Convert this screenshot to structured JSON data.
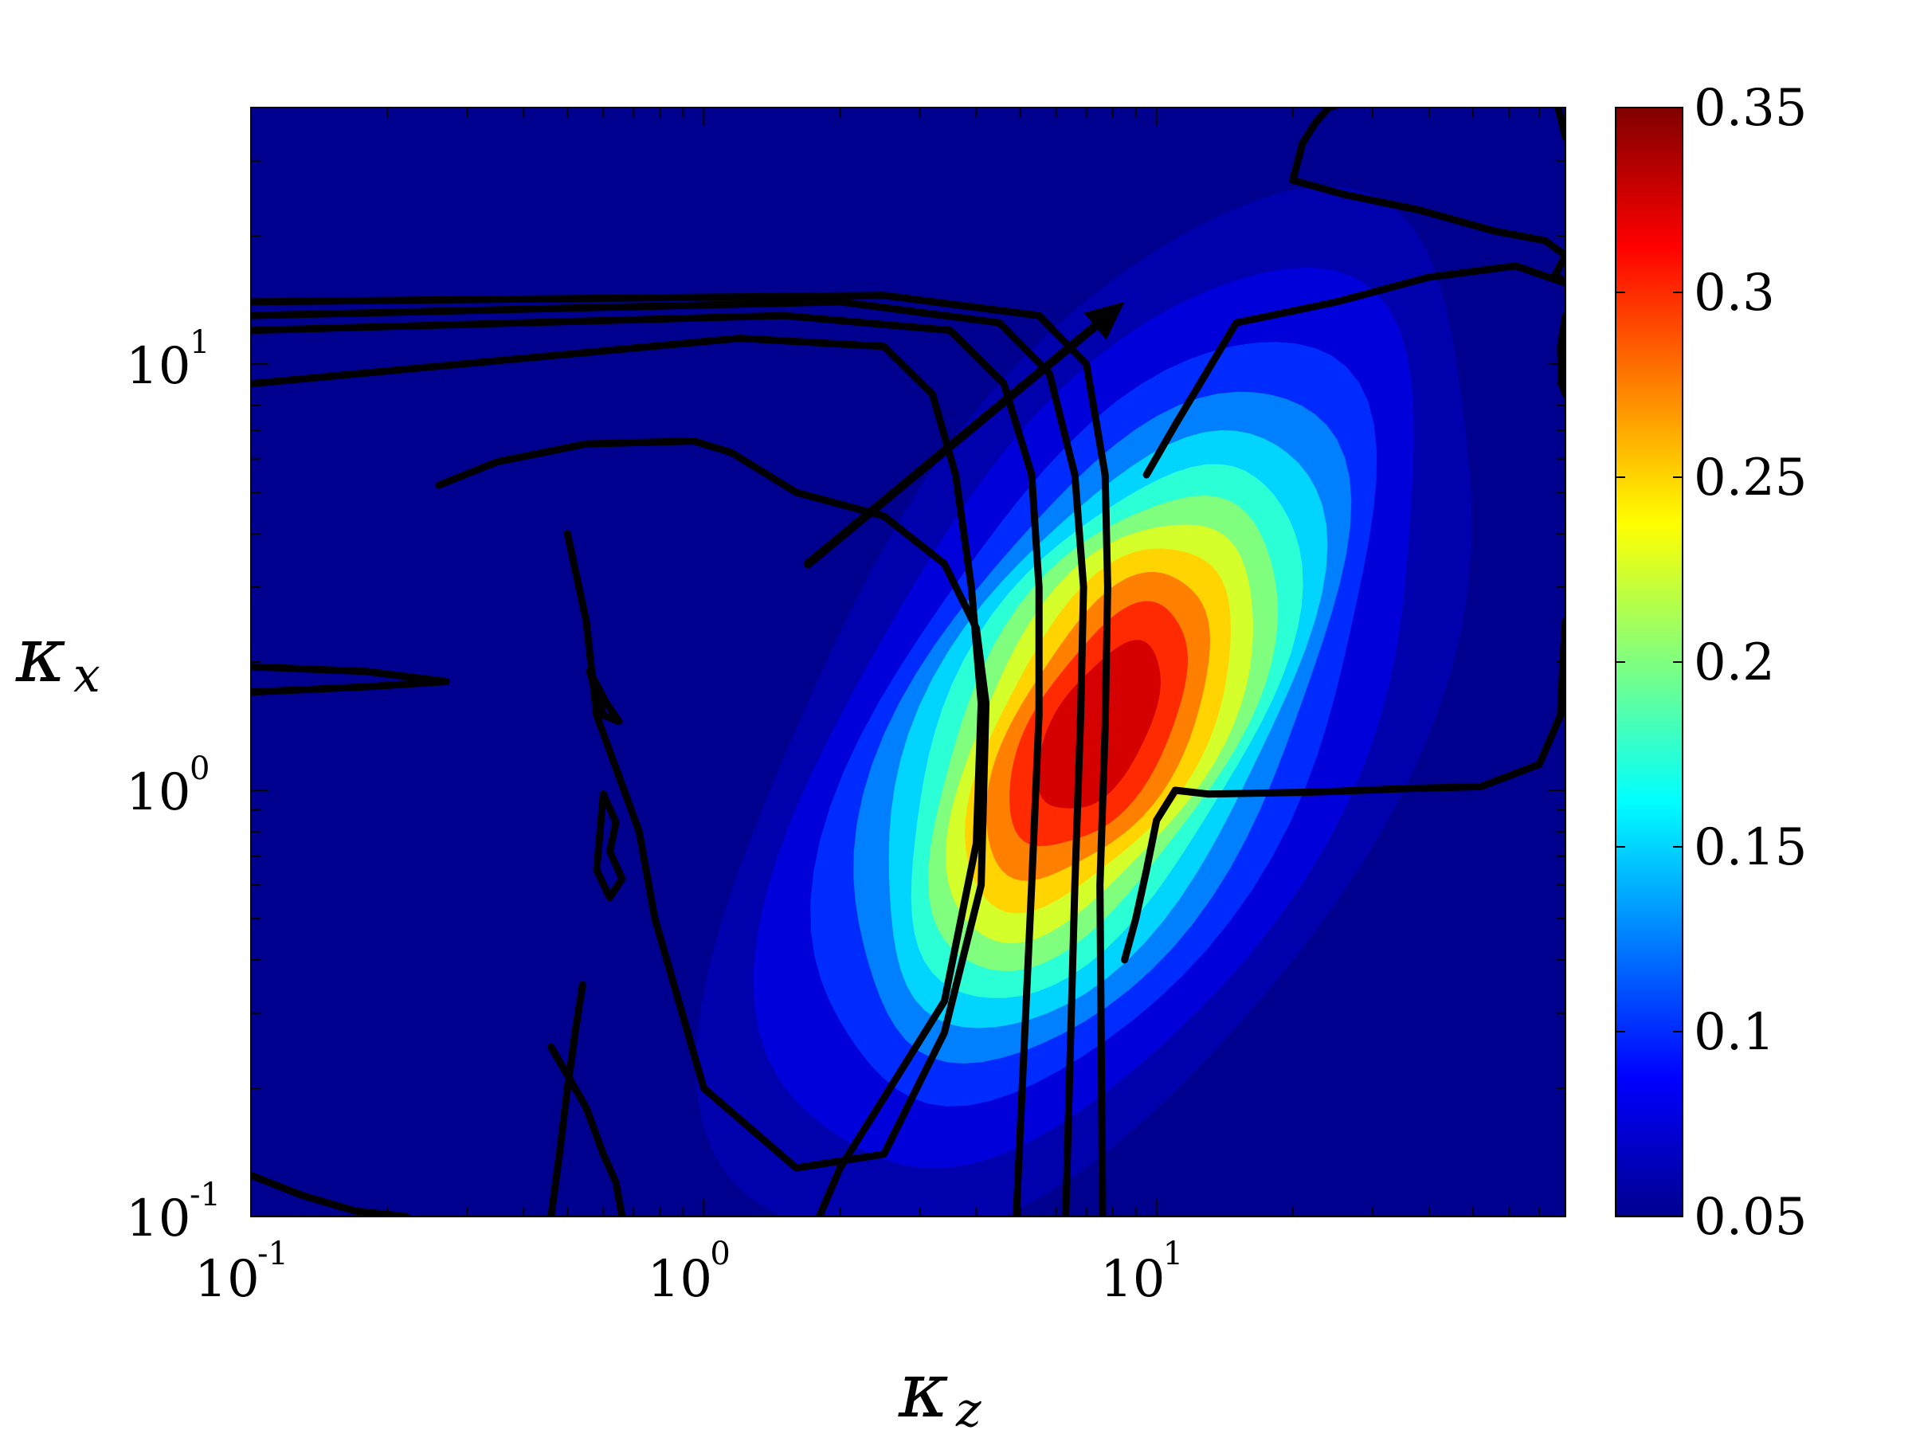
{
  "chart_data": {
    "type": "heatmap",
    "subtype": "filled contour with black contour lines",
    "xlabel": "κ",
    "xlabel_sub": "z",
    "ylabel": "κ",
    "ylabel_sub": "x",
    "x_scale": "log",
    "y_scale": "log",
    "xlim": [
      0.1,
      80
    ],
    "ylim": [
      0.1,
      40
    ],
    "x_ticks": [
      {
        "base": "10",
        "exp": "-1",
        "value": 0.1
      },
      {
        "base": "10",
        "exp": "0",
        "value": 1
      },
      {
        "base": "10",
        "exp": "1",
        "value": 10
      }
    ],
    "y_ticks": [
      {
        "base": "10",
        "exp": "-1",
        "value": 0.1
      },
      {
        "base": "10",
        "exp": "0",
        "value": 1
      },
      {
        "base": "10",
        "exp": "1",
        "value": 10
      }
    ],
    "colorbar": {
      "colormap": "jet",
      "range": [
        0.05,
        0.35
      ],
      "ticks": [
        "0.05",
        "0.1",
        "0.15",
        "0.2",
        "0.25",
        "0.3",
        "0.35"
      ],
      "tick_values": [
        0.05,
        0.1,
        0.15,
        0.2,
        0.25,
        0.3,
        0.35
      ]
    },
    "field": {
      "background_level": 0.05,
      "peak": {
        "kz": 7.5,
        "kx": 1.4,
        "value": 0.35
      },
      "contour_levels": [
        0.06,
        0.075,
        0.1,
        0.125,
        0.15,
        0.175,
        0.2,
        0.225,
        0.25,
        0.275,
        0.3,
        0.325
      ]
    },
    "contour_lines": [
      {
        "kz": [
          0.1,
          1.2,
          2.5,
          3.2,
          3.6,
          3.9,
          4.1,
          4.0,
          3.4,
          2.0,
          1.8
        ],
        "kx": [
          9.0,
          11.5,
          11.0,
          8.5,
          5.5,
          3.0,
          1.6,
          0.75,
          0.32,
          0.13,
          0.1
        ]
      },
      {
        "kz": [
          0.1,
          1.5,
          3.5,
          4.6,
          5.3,
          5.5,
          5.5,
          5.3,
          4.9
        ],
        "kx": [
          12.0,
          13.0,
          12.0,
          9.0,
          5.5,
          3.0,
          1.5,
          0.6,
          0.1
        ]
      },
      {
        "kz": [
          0.1,
          2.0,
          4.5,
          5.8,
          6.6,
          6.9,
          6.8,
          6.6,
          6.3
        ],
        "kx": [
          13.0,
          14.0,
          12.5,
          9.5,
          5.5,
          3.0,
          1.5,
          0.6,
          0.1
        ]
      },
      {
        "kz": [
          0.1,
          2.5,
          5.5,
          7.0,
          7.7,
          7.8,
          7.7,
          7.5,
          7.6
        ],
        "kx": [
          14.0,
          14.5,
          13.0,
          10.0,
          5.5,
          3.0,
          1.4,
          0.6,
          0.1
        ]
      },
      {
        "kz": [
          0.26,
          0.35,
          0.55,
          0.95,
          1.15,
          1.6,
          2.5,
          3.4,
          4.0,
          4.2,
          4.1,
          3.4,
          2.5,
          1.6,
          1.0,
          0.78
        ],
        "kx": [
          5.2,
          5.9,
          6.5,
          6.6,
          6.2,
          5.0,
          4.4,
          3.4,
          2.4,
          1.6,
          0.6,
          0.27,
          0.14,
          0.13,
          0.2,
          0.5
        ]
      },
      {
        "kz": [
          0.78,
          0.72,
          0.58,
          0.55,
          0.5
        ],
        "kx": [
          0.5,
          0.8,
          1.5,
          2.5,
          4.0
        ]
      },
      {
        "kz": [
          0.46,
          0.55,
          0.6,
          0.64,
          0.66
        ],
        "kx": [
          0.25,
          0.18,
          0.14,
          0.12,
          0.1
        ]
      },
      {
        "kz": [
          0.46,
          0.48,
          0.5,
          0.52,
          0.54
        ],
        "kx": [
          0.1,
          0.14,
          0.2,
          0.27,
          0.35
        ]
      },
      {
        "kz": [
          0.1,
          0.18,
          0.27,
          0.18,
          0.1
        ],
        "kx": [
          1.95,
          1.9,
          1.8,
          1.75,
          1.7
        ]
      },
      {
        "kz": [
          0.56,
          0.61,
          0.65,
          0.6,
          0.56
        ],
        "kx": [
          1.9,
          1.6,
          1.45,
          1.5,
          1.9
        ]
      },
      {
        "kz": [
          0.6,
          0.64,
          0.62,
          0.66,
          0.62,
          0.58,
          0.6
        ],
        "kx": [
          0.98,
          0.84,
          0.72,
          0.62,
          0.56,
          0.65,
          0.98
        ]
      },
      {
        "kz": [
          0.1,
          0.13,
          0.17,
          0.22
        ],
        "kx": [
          0.125,
          0.112,
          0.103,
          0.1
        ]
      },
      {
        "kz": [
          9.5,
          11.0,
          15.0,
          25.0,
          40.0,
          62.0,
          80.0
        ],
        "kx": [
          5.5,
          7.2,
          12.5,
          14.0,
          16.0,
          17.0,
          15.5
        ]
      },
      {
        "kz": [
          20.0,
          21.0,
          22.5,
          24.0,
          26.0
        ],
        "kx": [
          27.0,
          33.0,
          37.0,
          40.0,
          41.0
        ]
      },
      {
        "kz": [
          20.0,
          26.0,
          38.0,
          56.0,
          72.0,
          80.0,
          76.0,
          80.0
        ],
        "kx": [
          27.0,
          25.0,
          23.0,
          20.5,
          19.5,
          18.0,
          16.2,
          15.5
        ]
      },
      {
        "kz": [
          77.0,
          78.5,
          80.0
        ],
        "kx": [
          40.0,
          37.0,
          34.0
        ]
      },
      {
        "kz": [
          80.0,
          78.0,
          78.5,
          80.0
        ],
        "kx": [
          13.0,
          11.0,
          9.0,
          8.5
        ]
      },
      {
        "kz": [
          11.0,
          13.0,
          22.0,
          36.0,
          52.0,
          70.0,
          78.0,
          79.0,
          80.0
        ],
        "kx": [
          1.0,
          0.98,
          0.99,
          1.01,
          1.02,
          1.15,
          1.5,
          2.0,
          2.5
        ]
      },
      {
        "kz": [
          11.0,
          10.0,
          9.5,
          9.0,
          8.5
        ],
        "kx": [
          1.0,
          0.85,
          0.65,
          0.5,
          0.4
        ]
      }
    ],
    "arrow": {
      "from": {
        "kz": 1.7,
        "kx": 3.4
      },
      "to": {
        "kz": 8.5,
        "kx": 14.0
      }
    }
  }
}
